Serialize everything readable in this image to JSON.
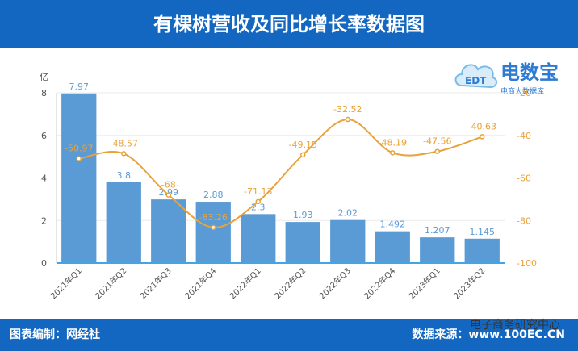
{
  "header": {
    "title": "有棵树营收及同比增长率数据图"
  },
  "footer": {
    "left": "图表编制：网经社",
    "right": "数据来源：www.100EC.CN"
  },
  "watermark": {
    "wechat": "电子商务研究中心"
  },
  "logo": {
    "brand": "电数宝",
    "sub": "电商大数据库",
    "badge": "EDT"
  },
  "colors": {
    "header_bg": "#1467c0",
    "bar": "#5b9bd5",
    "line": "#e8a23a",
    "left_axis_label": "#555555",
    "right_axis_label": "#e8a23a"
  },
  "chart_data": {
    "type": "bar",
    "categories": [
      "2021年Q1",
      "2021年Q2",
      "2021年Q3",
      "2021年Q4",
      "2022年Q1",
      "2022年Q2",
      "2022年Q3",
      "2022年Q4",
      "2023年Q1",
      "2023年Q2"
    ],
    "series": [
      {
        "type": "bar",
        "axis": "left",
        "values": [
          7.97,
          3.8,
          2.99,
          2.88,
          2.3,
          1.93,
          2.02,
          1.492,
          1.207,
          1.145
        ],
        "labels": [
          "7.97",
          "3.8",
          "2.99",
          "2.88",
          "2.3",
          "1.93",
          "2.02",
          "1.492",
          "1.207",
          "1.145"
        ]
      },
      {
        "type": "line",
        "axis": "right",
        "values": [
          -50.97,
          -48.57,
          -68,
          -83.26,
          -71.13,
          -49.15,
          -32.52,
          -48.19,
          -47.56,
          -40.63
        ],
        "labels": [
          "-50.97",
          "-48.57",
          "-68",
          "-83.26",
          "-71.13",
          "-49.15",
          "-32.52",
          "-48.19",
          "-47.56",
          "-40.63"
        ]
      }
    ],
    "ylabel": "亿",
    "ylim": [
      0,
      8
    ],
    "y_ticks": [
      "0",
      "2",
      "4",
      "6",
      "8"
    ],
    "y2lim": [
      -100,
      -20
    ],
    "y2_ticks": [
      "-100",
      "-80",
      "-60",
      "-40",
      "-20"
    ],
    "grid": true,
    "legend": "none"
  }
}
